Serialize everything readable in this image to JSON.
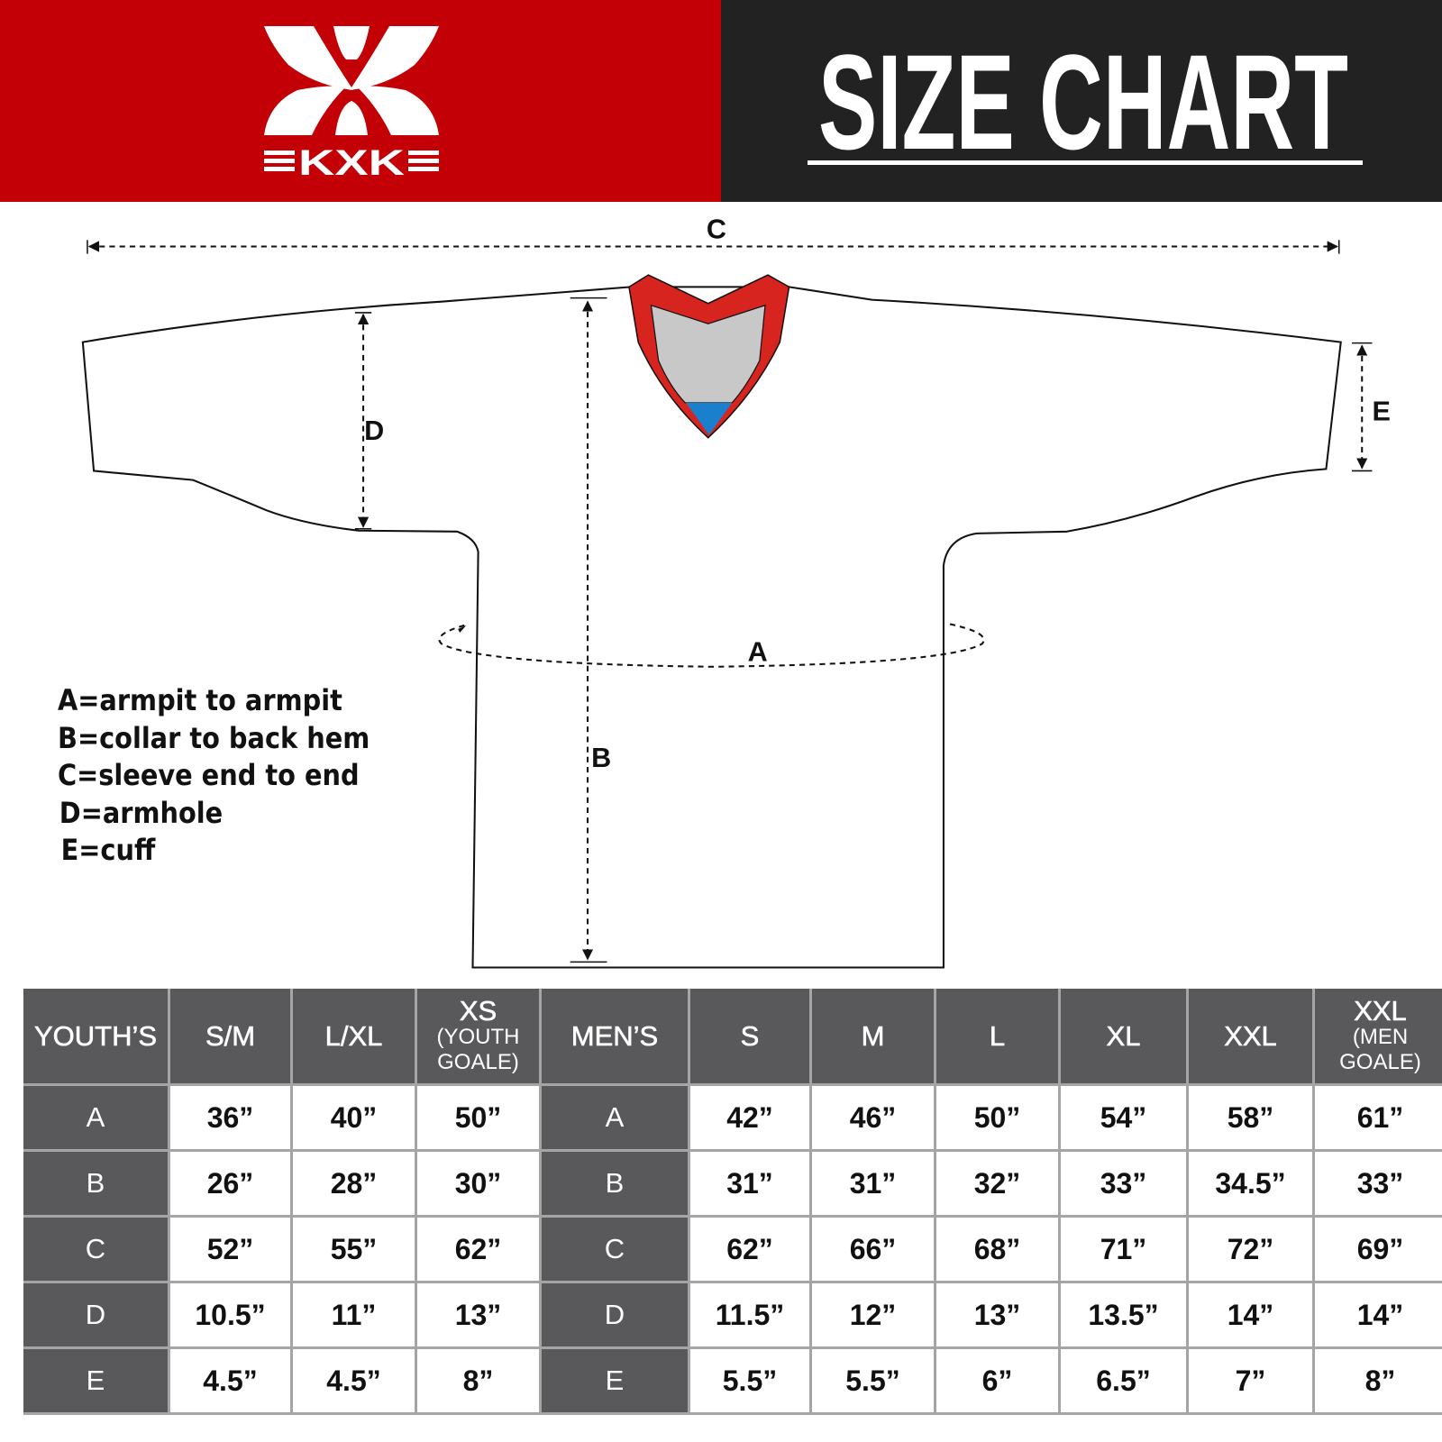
{
  "brand": {
    "logo_text": "KXK",
    "colors": {
      "red": "#c20006",
      "dark": "#222222",
      "table_header": "#59595b",
      "collar_red": "#d8241f",
      "collar_grey": "#c8c8c8",
      "collar_blue": "#1a7fcc"
    }
  },
  "header": {
    "title": "SIZE CHART"
  },
  "diagram": {
    "labels": {
      "a": "A",
      "b": "B",
      "c": "C",
      "d": "D",
      "e": "E"
    },
    "legend": [
      "A=armpit to armpit",
      "B=collar to back hem",
      "C=sleeve end to end",
      "D=armhole",
      "E=cuff"
    ]
  },
  "table": {
    "headers": [
      {
        "main": "YOUTH’S",
        "sub": ""
      },
      {
        "main": "S/M",
        "sub": ""
      },
      {
        "main": "L/XL",
        "sub": ""
      },
      {
        "main": "XS",
        "sub": "(YOUTH GOALE)"
      },
      {
        "main": "MEN’S",
        "sub": ""
      },
      {
        "main": "S",
        "sub": ""
      },
      {
        "main": "M",
        "sub": ""
      },
      {
        "main": "L",
        "sub": ""
      },
      {
        "main": "XL",
        "sub": ""
      },
      {
        "main": "XXL",
        "sub": ""
      },
      {
        "main": "XXL",
        "sub": "(MEN GOALE)"
      }
    ],
    "rows": [
      [
        "A",
        "36”",
        "40”",
        "50”",
        "A",
        "42”",
        "46”",
        "50”",
        "54”",
        "58”",
        "61”"
      ],
      [
        "B",
        "26”",
        "28”",
        "30”",
        "B",
        "31”",
        "31”",
        "32”",
        "33”",
        "34.5”",
        "33”"
      ],
      [
        "C",
        "52”",
        "55”",
        "62”",
        "C",
        "62”",
        "66”",
        "68”",
        "71”",
        "72”",
        "69”"
      ],
      [
        "D",
        "10.5”",
        "11”",
        "13”",
        "D",
        "11.5”",
        "12”",
        "13”",
        "13.5”",
        "14”",
        "14”"
      ],
      [
        "E",
        "4.5”",
        "4.5”",
        "8”",
        "E",
        "5.5”",
        "5.5”",
        "6”",
        "6.5”",
        "7”",
        "8”"
      ]
    ]
  }
}
